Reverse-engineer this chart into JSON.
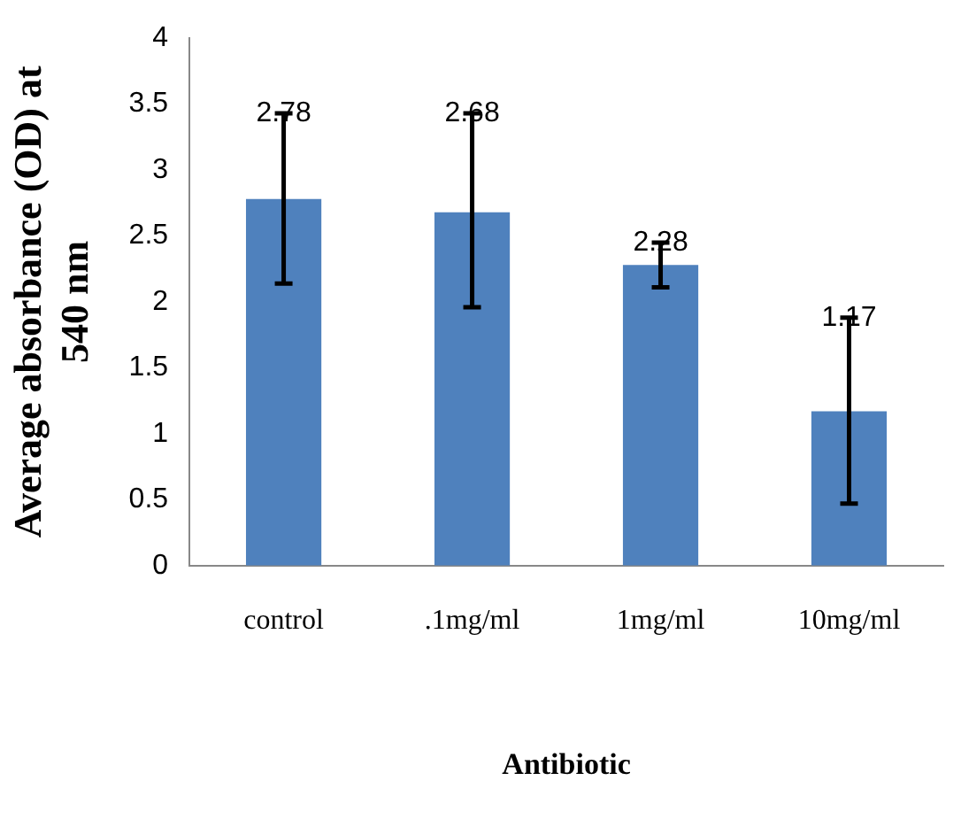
{
  "chart_data": {
    "type": "bar",
    "xlabel": "Antibiotic",
    "ylabel": "Average absorbance (OD) at 540 nm",
    "categories": [
      "control",
      ".1mg/ml",
      "1mg/ml",
      "10mg/ml"
    ],
    "values": [
      2.78,
      2.68,
      2.28,
      1.17
    ],
    "color": "#4f81bd",
    "errors": [
      [
        2.14,
        3.43
      ],
      [
        1.96,
        3.43
      ],
      [
        2.11,
        2.45
      ],
      [
        0.47,
        1.88
      ]
    ],
    "data_labels": true,
    "ylim": [
      0,
      4
    ],
    "yticks": [
      0,
      0.5,
      1,
      1.5,
      2,
      2.5,
      3,
      3.5,
      4
    ],
    "grid": false,
    "legend": false
  }
}
